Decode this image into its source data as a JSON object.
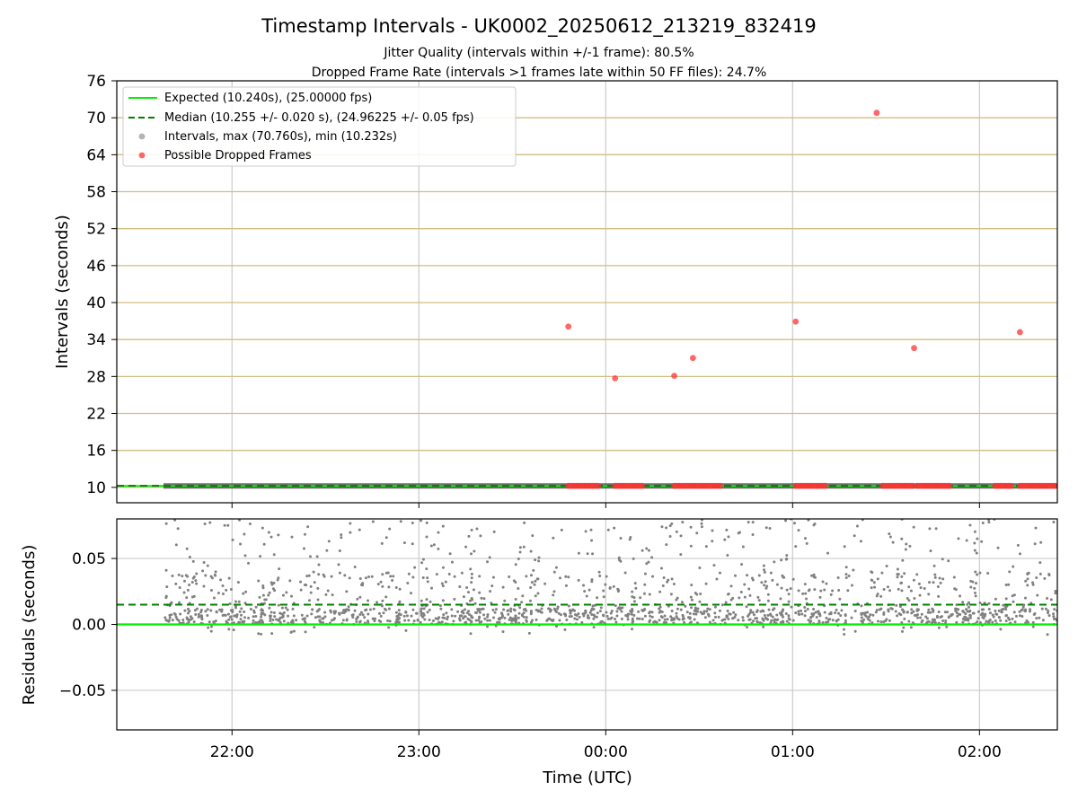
{
  "title": "Timestamp Intervals - UK0002_20250612_213219_832419",
  "subtitle_1": "Jitter Quality (intervals within +/-1 frame): 80.5%",
  "subtitle_2": "Dropped Frame Rate (intervals >1 frames late within 50 FF files): 24.7%",
  "colors": {
    "expected": "#00ee00",
    "median": "#008000",
    "intervals": "#808080",
    "dropped": "#ff3333",
    "hgrid_top": "#d2be82",
    "grid": "#cccccc"
  },
  "chart_data": [
    {
      "type": "scatter",
      "name": "intervals",
      "xlabel": "",
      "ylabel": "Intervals (seconds)",
      "xlim": [
        "21:23",
        "02:25"
      ],
      "ylim": [
        7.5,
        76
      ],
      "yticks": [
        10,
        16,
        22,
        28,
        34,
        40,
        46,
        52,
        58,
        64,
        70,
        76
      ],
      "grid": true,
      "legend_position": "top-left",
      "legend": [
        "Expected (10.240s), (25.00000 fps)",
        "Median (10.255 +/- 0.020 s), (24.96225 +/- 0.05 fps)",
        "Intervals, max (70.760s), min (10.232s)",
        "Possible Dropped Frames"
      ],
      "expected_value": 10.24,
      "median_value": 10.255,
      "intervals_time_range": [
        "21:38",
        "02:25"
      ],
      "intervals_baseline": 10.24,
      "dropped_frames_outliers": [
        {
          "x": "23:48",
          "y": 36.1
        },
        {
          "x": "00:03",
          "y": 27.7
        },
        {
          "x": "00:22",
          "y": 28.1
        },
        {
          "x": "00:28",
          "y": 31.0
        },
        {
          "x": "01:01",
          "y": 36.9
        },
        {
          "x": "01:27",
          "y": 70.8
        },
        {
          "x": "01:39",
          "y": 32.6
        },
        {
          "x": "02:13",
          "y": 35.2
        }
      ],
      "dropped_frames_clusters": [
        [
          "23:48",
          "23:58"
        ],
        [
          "00:03",
          "00:12"
        ],
        [
          "00:22",
          "00:37"
        ],
        [
          "01:01",
          "01:11"
        ],
        [
          "01:29",
          "01:39"
        ],
        [
          "01:40",
          "01:51"
        ],
        [
          "02:05",
          "02:11"
        ],
        [
          "02:13",
          "02:25"
        ]
      ]
    },
    {
      "type": "scatter",
      "name": "residuals",
      "xlabel": "Time (UTC)",
      "ylabel": "Residuals (seconds)",
      "xlim": [
        "21:23",
        "02:25"
      ],
      "ylim": [
        -0.08,
        0.08
      ],
      "yticks": [
        -0.05,
        0.0,
        0.05
      ],
      "ytick_labels": [
        "−0.05",
        "0.00",
        "0.05"
      ],
      "xticks": [
        "22:00",
        "23:00",
        "00:00",
        "01:00",
        "02:00"
      ],
      "grid": true,
      "expected_residual": 0.0,
      "median_residual": 0.015,
      "residual_range": [
        -0.008,
        0.08
      ],
      "residual_time_range": [
        "21:38",
        "02:25"
      ]
    }
  ]
}
